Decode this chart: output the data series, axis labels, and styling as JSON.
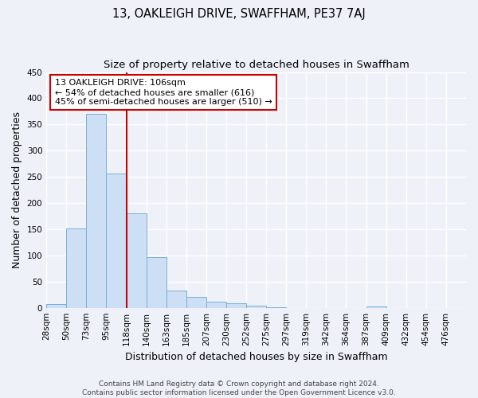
{
  "title": "13, OAKLEIGH DRIVE, SWAFFHAM, PE37 7AJ",
  "subtitle": "Size of property relative to detached houses in Swaffham",
  "xlabel": "Distribution of detached houses by size in Swaffham",
  "ylabel": "Number of detached properties",
  "bin_labels": [
    "28sqm",
    "50sqm",
    "73sqm",
    "95sqm",
    "118sqm",
    "140sqm",
    "163sqm",
    "185sqm",
    "207sqm",
    "230sqm",
    "252sqm",
    "275sqm",
    "297sqm",
    "319sqm",
    "342sqm",
    "364sqm",
    "387sqm",
    "409sqm",
    "432sqm",
    "454sqm",
    "476sqm"
  ],
  "bar_heights": [
    7,
    151,
    371,
    257,
    180,
    97,
    33,
    21,
    12,
    9,
    4,
    1,
    0,
    0,
    0,
    0,
    2,
    0,
    0,
    0,
    0
  ],
  "bar_color": "#ccdff5",
  "bar_edge_color": "#7aafd4",
  "vline_color": "#cc0000",
  "vline_bin_index": 3,
  "ylim": [
    0,
    450
  ],
  "yticks": [
    0,
    50,
    100,
    150,
    200,
    250,
    300,
    350,
    400,
    450
  ],
  "annotation_text": "13 OAKLEIGH DRIVE: 106sqm\n← 54% of detached houses are smaller (616)\n45% of semi-detached houses are larger (510) →",
  "annotation_box_color": "#ffffff",
  "annotation_box_edge": "#cc0000",
  "footer_text": "Contains HM Land Registry data © Crown copyright and database right 2024.\nContains public sector information licensed under the Open Government Licence v3.0.",
  "background_color": "#eef2f8",
  "grid_color": "#ffffff",
  "title_fontsize": 10.5,
  "subtitle_fontsize": 9.5,
  "axis_label_fontsize": 9,
  "tick_fontsize": 7.5,
  "footer_fontsize": 6.5
}
